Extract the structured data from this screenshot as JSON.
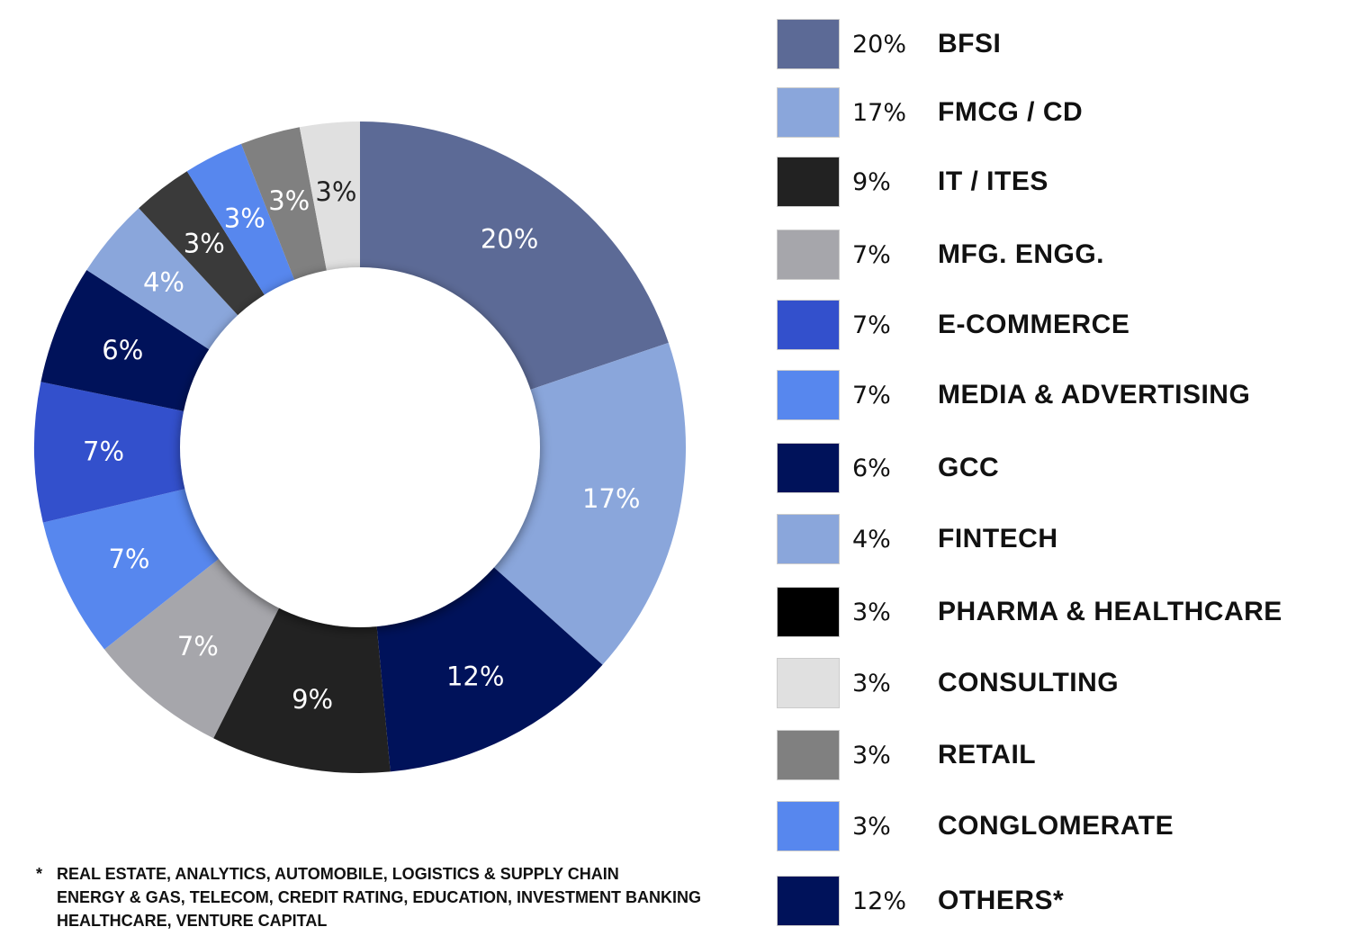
{
  "chart_data": {
    "type": "pie",
    "donut": true,
    "slices": [
      {
        "name": "BFSI",
        "value": 20,
        "label": "20%",
        "color": "#5c6a96",
        "text_color": "#ffffff"
      },
      {
        "name": "FMCG / CD",
        "value": 17,
        "label": "17%",
        "color": "#8aa6db",
        "text_color": "#ffffff"
      },
      {
        "name": "OTHERS*",
        "value": 12,
        "label": "12%",
        "color": "#00125a",
        "text_color": "#ffffff"
      },
      {
        "name": "IT / ITES",
        "value": 9,
        "label": "9%",
        "color": "#222222",
        "text_color": "#ffffff"
      },
      {
        "name": "MFG. ENGG.",
        "value": 7,
        "label": "7%",
        "color": "#a6a6ab",
        "text_color": "#ffffff"
      },
      {
        "name": "MEDIA & ADVERTISING",
        "value": 7,
        "label": "7%",
        "color": "#5787ee",
        "text_color": "#ffffff"
      },
      {
        "name": "E-COMMERCE",
        "value": 7,
        "label": "7%",
        "color": "#3350cc",
        "text_color": "#ffffff"
      },
      {
        "name": "GCC",
        "value": 6,
        "label": "6%",
        "color": "#00125a",
        "text_color": "#ffffff"
      },
      {
        "name": "FINTECH",
        "value": 4,
        "label": "4%",
        "color": "#8aa6db",
        "text_color": "#ffffff"
      },
      {
        "name": "PHARMA & HEALTHCARE",
        "value": 3,
        "label": "3%",
        "color": "#3a3a3a",
        "text_color": "#ffffff"
      },
      {
        "name": "CONGLOMERATE",
        "value": 3,
        "label": "3%",
        "color": "#5787ee",
        "text_color": "#ffffff"
      },
      {
        "name": "RETAIL",
        "value": 3,
        "label": "3%",
        "color": "#808080",
        "text_color": "#ffffff"
      },
      {
        "name": "CONSULTING",
        "value": 3,
        "label": "3%",
        "color": "#e0e0e0",
        "text_color": "#222222"
      }
    ],
    "legend_placement": "right",
    "legend": [
      {
        "pct": "20%",
        "label": "BFSI",
        "color": "#5c6a96"
      },
      {
        "pct": "17%",
        "label": "FMCG / CD",
        "color": "#8aa6db"
      },
      {
        "pct": "9%",
        "label": "IT / ITES",
        "color": "#222222"
      },
      {
        "pct": "7%",
        "label": "MFG. ENGG.",
        "color": "#a6a6ab"
      },
      {
        "pct": "7%",
        "label": "E-COMMERCE",
        "color": "#3350cc"
      },
      {
        "pct": "7%",
        "label": "MEDIA & ADVERTISING",
        "color": "#5787ee"
      },
      {
        "pct": "6%",
        "label": "GCC",
        "color": "#00125a"
      },
      {
        "pct": "4%",
        "label": "FINTECH",
        "color": "#8aa6db"
      },
      {
        "pct": "3%",
        "label": "PHARMA & HEALTHCARE",
        "color": "#000000"
      },
      {
        "pct": "3%",
        "label": "CONSULTING",
        "color": "#e0e0e0"
      },
      {
        "pct": "3%",
        "label": "RETAIL",
        "color": "#808080"
      },
      {
        "pct": "3%",
        "label": "CONGLOMERATE",
        "color": "#5787ee"
      },
      {
        "pct": "12%",
        "label": "OTHERS*",
        "color": "#00125a"
      }
    ]
  },
  "footnote": {
    "star": "*",
    "lines": [
      "REAL ESTATE, ANALYTICS, AUTOMOBILE, LOGISTICS & SUPPLY CHAIN",
      "ENERGY & GAS, TELECOM, CREDIT RATING, EDUCATION, INVESTMENT BANKING",
      "HEALTHCARE, VENTURE CAPITAL"
    ]
  }
}
